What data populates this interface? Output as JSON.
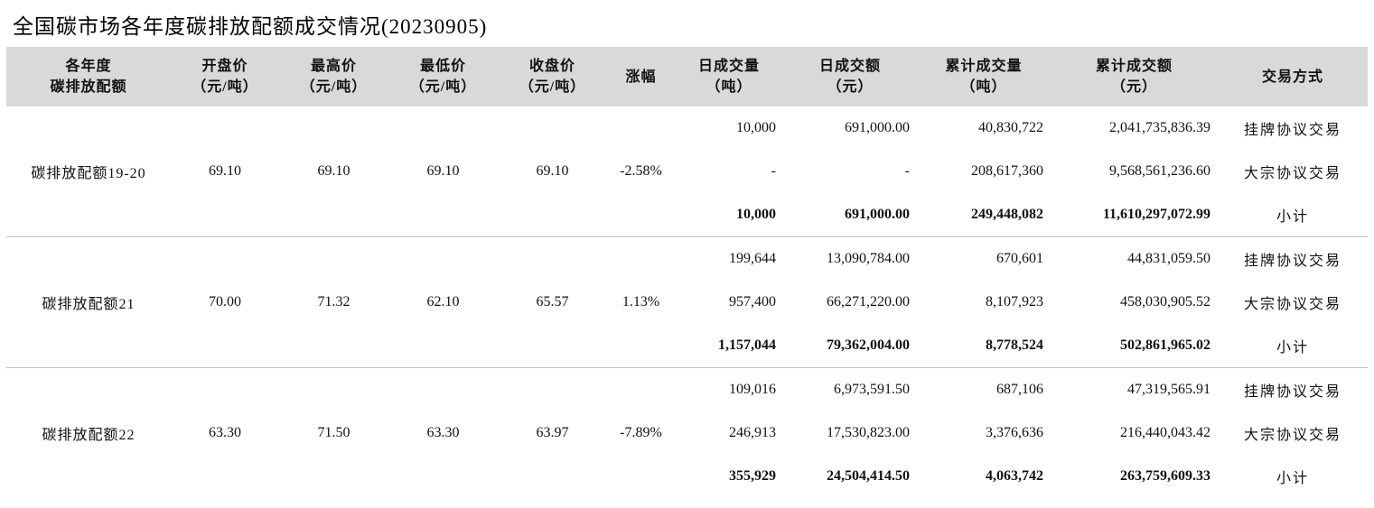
{
  "title": "全国碳市场各年度碳排放配额成交情况(20230905)",
  "headers": [
    [
      "各年度",
      "碳排放配额"
    ],
    [
      "开盘价",
      "（元/吨）"
    ],
    [
      "最高价",
      "（元/吨）"
    ],
    [
      "最低价",
      "（元/吨）"
    ],
    [
      "收盘价",
      "（元/吨）"
    ],
    [
      "涨幅"
    ],
    [
      "日成交量",
      "（吨）"
    ],
    [
      "日成交额",
      "（元）"
    ],
    [
      "累计成交量",
      "（吨）"
    ],
    [
      "累计成交额",
      "（元）"
    ],
    [
      "交易方式"
    ]
  ],
  "groups": [
    {
      "name": "碳排放配额19-20",
      "open": "69.10",
      "high": "69.10",
      "low": "69.10",
      "close": "69.10",
      "change": "-2.58%",
      "rows": [
        {
          "vol": "10,000",
          "amt": "691,000.00",
          "cum_vol": "40,830,722",
          "cum_amt": "2,041,735,836.39",
          "mode": "挂牌协议交易"
        },
        {
          "vol": "-",
          "amt": "-",
          "cum_vol": "208,617,360",
          "cum_amt": "9,568,561,236.60",
          "mode": "大宗协议交易"
        },
        {
          "vol": "10,000",
          "amt": "691,000.00",
          "cum_vol": "249,448,082",
          "cum_amt": "11,610,297,072.99",
          "mode": "小计"
        }
      ]
    },
    {
      "name": "碳排放配额21",
      "open": "70.00",
      "high": "71.32",
      "low": "62.10",
      "close": "65.57",
      "change": "1.13%",
      "rows": [
        {
          "vol": "199,644",
          "amt": "13,090,784.00",
          "cum_vol": "670,601",
          "cum_amt": "44,831,059.50",
          "mode": "挂牌协议交易"
        },
        {
          "vol": "957,400",
          "amt": "66,271,220.00",
          "cum_vol": "8,107,923",
          "cum_amt": "458,030,905.52",
          "mode": "大宗协议交易"
        },
        {
          "vol": "1,157,044",
          "amt": "79,362,004.00",
          "cum_vol": "8,778,524",
          "cum_amt": "502,861,965.02",
          "mode": "小计"
        }
      ]
    },
    {
      "name": "碳排放配额22",
      "open": "63.30",
      "high": "71.50",
      "low": "63.30",
      "close": "63.97",
      "change": "-7.89%",
      "rows": [
        {
          "vol": "109,016",
          "amt": "6,973,591.50",
          "cum_vol": "687,106",
          "cum_amt": "47,319,565.91",
          "mode": "挂牌协议交易"
        },
        {
          "vol": "246,913",
          "amt": "17,530,823.00",
          "cum_vol": "3,376,636",
          "cum_amt": "216,440,043.42",
          "mode": "大宗协议交易"
        },
        {
          "vol": "355,929",
          "amt": "24,504,414.50",
          "cum_vol": "4,063,742",
          "cum_amt": "263,759,609.33",
          "mode": "小计"
        }
      ]
    }
  ]
}
